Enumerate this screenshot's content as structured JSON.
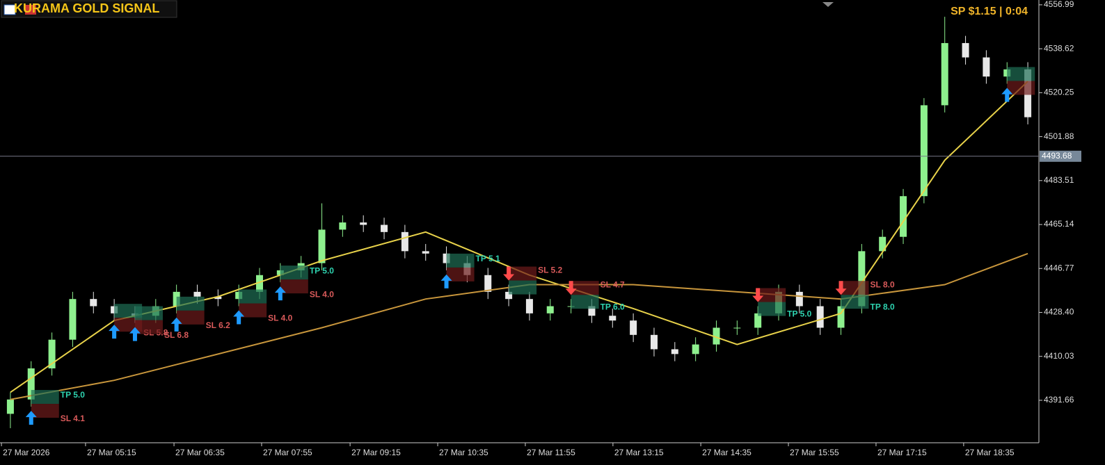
{
  "chart_data": {
    "type": "candlestick",
    "title": "KURAMA GOLD SIGNAL",
    "status": "SP $1.15  |  0:04",
    "up_color": "#8ef08e",
    "down_color": "#e8e8e8",
    "open": [
      4386,
      4392,
      4405,
      4417,
      4434,
      4431,
      4428,
      4427,
      4431,
      4437,
      4435,
      4434,
      4437,
      4444,
      4446,
      4449,
      4463,
      4466,
      4465,
      4462,
      4454,
      4453,
      4449,
      4444,
      4437,
      4434,
      4428,
      4431,
      4431,
      4427,
      4425,
      4419,
      4413,
      4411,
      4415,
      4422,
      4422,
      4428,
      4437,
      4431,
      4422,
      4431,
      4454,
      4460,
      4477,
      4515,
      4541,
      4535,
      4527,
      4530
    ],
    "high": [
      4395,
      4408,
      4420,
      4437,
      4437,
      4434,
      4431,
      4434,
      4440,
      4440,
      4438,
      4440,
      4447,
      4449,
      4452,
      4474,
      4469,
      4469,
      4468,
      4465,
      4457,
      4456,
      4452,
      4447,
      4440,
      4437,
      4434,
      4434,
      4434,
      4430,
      4428,
      4422,
      4416,
      4418,
      4425,
      4425,
      4431,
      4440,
      4440,
      4434,
      4434,
      4457,
      4463,
      4480,
      4518,
      4552,
      4544,
      4538,
      4533,
      4533
    ],
    "low": [
      4380,
      4389,
      4402,
      4414,
      4428,
      4425,
      4424,
      4424,
      4428,
      4432,
      4431,
      4431,
      4434,
      4441,
      4443,
      4446,
      4460,
      4462,
      4459,
      4451,
      4450,
      4446,
      4441,
      4434,
      4431,
      4425,
      4425,
      4428,
      4424,
      4422,
      4416,
      4410,
      4408,
      4408,
      4412,
      4419,
      4419,
      4425,
      4428,
      4419,
      4419,
      4428,
      4451,
      4457,
      4474,
      4512,
      4532,
      4524,
      4524,
      4507
    ],
    "close": [
      4392,
      4405,
      4417,
      4434,
      4431,
      4428,
      4427,
      4431,
      4437,
      4435,
      4434,
      4437,
      4444,
      4446,
      4449,
      4463,
      4466,
      4465,
      4462,
      4454,
      4453,
      4449,
      4444,
      4437,
      4434,
      4428,
      4431,
      4431,
      4427,
      4425,
      4419,
      4413,
      4411,
      4415,
      4422,
      4422,
      4428,
      4437,
      4431,
      4422,
      4431,
      4454,
      4460,
      4477,
      4515,
      4541,
      4535,
      4527,
      4530,
      4510
    ],
    "lines": [
      {
        "color": "#e8d24a",
        "x": [
          0,
          5,
          10,
          15,
          20,
          25,
          30,
          35,
          40,
          45,
          49
        ],
        "values": [
          4395,
          4425,
          4435,
          4450,
          4462,
          4444,
          4430,
          4415,
          4428,
          4492,
          4525
        ]
      },
      {
        "color": "#c8963c",
        "x": [
          0,
          5,
          10,
          15,
          20,
          25,
          30,
          35,
          40,
          45,
          49
        ],
        "values": [
          4392,
          4400,
          4411,
          4422,
          4434,
          4440,
          4440,
          4437,
          4434,
          4440,
          4453
        ]
      }
    ],
    "current_price": 4493.68,
    "xlim": [
      -0.5,
      49.5
    ],
    "ylim": [
      4374.2,
      4559.0
    ],
    "yticks": [
      4556.99,
      4538.62,
      {
        "value": 4520.25,
        "label": "4520.25"
      },
      4501.88,
      4483.51,
      4465.14,
      4446.77,
      {
        "value": 4428.4,
        "label": "4428.40"
      },
      4410.03,
      4391.66
    ],
    "xticks": [
      {
        "value": -0.43,
        "label": "27 Mar 2026"
      },
      {
        "value": 3.62,
        "label": "27 Mar 05:15"
      },
      {
        "value": 7.88,
        "label": "27 Mar 06:35"
      },
      {
        "value": 12.1,
        "label": "27 Mar 07:55"
      },
      {
        "value": 16.36,
        "label": "27 Mar 09:15"
      },
      {
        "value": 20.58,
        "label": "27 Mar 10:35"
      },
      {
        "value": 24.8,
        "label": "27 Mar 11:55"
      },
      {
        "value": 29.02,
        "label": "27 Mar 13:15"
      },
      {
        "value": 33.25,
        "label": "27 Mar 14:35"
      },
      {
        "value": 37.47,
        "label": "27 Mar 15:55"
      },
      {
        "value": 41.69,
        "label": "27 Mar 17:15"
      },
      {
        "value": 45.91,
        "label": "27 Mar 18:35"
      }
    ],
    "signals": [
      {
        "direction": "up",
        "index": 1,
        "tp": "TP 5.0",
        "sl": "SL 4.1"
      },
      {
        "direction": "up",
        "index": 5,
        "sl": "SL 5.8"
      },
      {
        "direction": "up",
        "index": 6,
        "sl": "SL 6.8"
      },
      {
        "direction": "up",
        "index": 8,
        "sl": "SL 6.2"
      },
      {
        "direction": "up",
        "index": 11,
        "sl": "SL 4.0"
      },
      {
        "direction": "up",
        "index": 13,
        "tp": "TP 5.0",
        "sl": "SL 4.0"
      },
      {
        "direction": "up",
        "index": 21,
        "tp": "TP 5.1"
      },
      {
        "direction": "down",
        "index": 24,
        "sl": "SL 5.2"
      },
      {
        "direction": "down",
        "index": 27,
        "tp": "TP 6.0",
        "sl": "SL 4.7"
      },
      {
        "direction": "down",
        "index": 36,
        "tp": "TP 5.0"
      },
      {
        "direction": "down",
        "index": 40,
        "tp": "TP 8.0",
        "sl": "SL 8.0"
      },
      {
        "direction": "up",
        "index": 48
      }
    ]
  }
}
